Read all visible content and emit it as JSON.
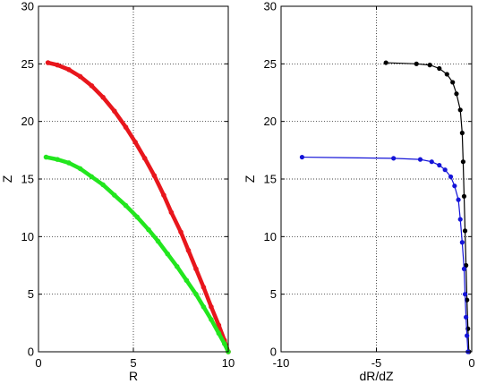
{
  "chart_data": [
    {
      "type": "scatter",
      "xlabel": "R",
      "ylabel": "Z",
      "xlim": [
        0,
        10
      ],
      "ylim": [
        0,
        30
      ],
      "xticks": [
        0,
        5,
        10
      ],
      "yticks": [
        0,
        5,
        10,
        15,
        20,
        25,
        30
      ],
      "grid": true,
      "series": [
        {
          "color": "#e8161c",
          "x": [
            0.5,
            1.0,
            1.6,
            2.2,
            2.8,
            3.4,
            4.0,
            4.6,
            5.1,
            5.6,
            6.1,
            6.6,
            7.0,
            7.5,
            7.9,
            8.3,
            8.7,
            9.1,
            9.5,
            9.8,
            10.0
          ],
          "y": [
            25.1,
            24.9,
            24.5,
            23.9,
            23.1,
            22.1,
            20.9,
            19.5,
            18.2,
            16.8,
            15.3,
            13.6,
            12.1,
            10.4,
            8.8,
            7.2,
            5.6,
            3.9,
            2.3,
            1.0,
            0.0
          ]
        },
        {
          "color": "#22e61e",
          "x": [
            0.4,
            1.0,
            1.6,
            2.2,
            2.8,
            3.4,
            4.0,
            4.6,
            5.2,
            5.8,
            6.3,
            6.8,
            7.3,
            7.8,
            8.3,
            8.7,
            9.1,
            9.5,
            9.8,
            10.0
          ],
          "y": [
            16.9,
            16.7,
            16.4,
            15.9,
            15.2,
            14.5,
            13.6,
            12.7,
            11.7,
            10.6,
            9.6,
            8.5,
            7.4,
            6.2,
            5.0,
            3.9,
            2.8,
            1.6,
            0.7,
            0.0
          ]
        }
      ]
    },
    {
      "type": "line",
      "xlabel": "dR/dZ",
      "ylabel": "Z",
      "xlim": [
        -10,
        0
      ],
      "ylim": [
        0,
        30
      ],
      "xticks": [
        -10,
        -5,
        0
      ],
      "yticks": [
        0,
        5,
        10,
        15,
        20,
        25,
        30
      ],
      "grid": true,
      "series": [
        {
          "color": "#000000",
          "x": [
            -4.5,
            -2.9,
            -2.2,
            -1.7,
            -1.3,
            -1.0,
            -0.8,
            -0.6,
            -0.5,
            -0.45,
            -0.4,
            -0.35,
            -0.3,
            -0.25,
            -0.2,
            -0.15
          ],
          "y": [
            25.1,
            25.0,
            24.9,
            24.6,
            24.1,
            23.4,
            22.4,
            21.0,
            19.0,
            16.5,
            13.5,
            10.5,
            7.5,
            4.5,
            2.0,
            0.0
          ]
        },
        {
          "color": "#1414d8",
          "x": [
            -8.9,
            -4.1,
            -2.7,
            -2.1,
            -1.7,
            -1.4,
            -1.1,
            -0.9,
            -0.7,
            -0.6,
            -0.5,
            -0.4,
            -0.35,
            -0.3,
            -0.25,
            -0.2
          ],
          "y": [
            16.9,
            16.8,
            16.7,
            16.5,
            16.2,
            15.8,
            15.2,
            14.4,
            13.2,
            11.5,
            9.5,
            7.2,
            5.0,
            3.0,
            1.4,
            0.0
          ]
        }
      ]
    }
  ]
}
